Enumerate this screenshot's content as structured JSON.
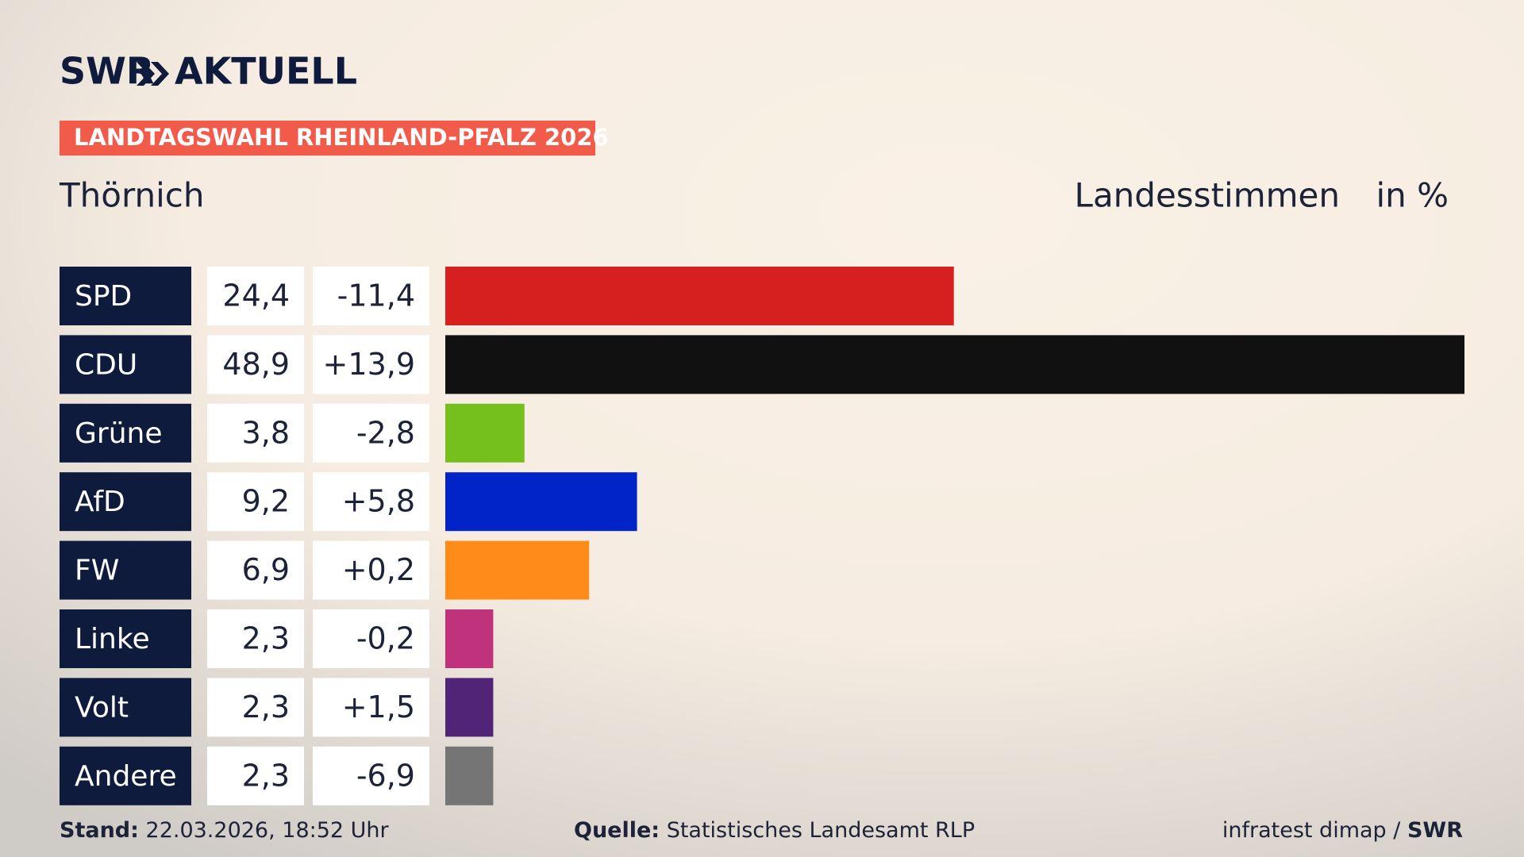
{
  "header": {
    "brand": "SWR",
    "product": "AKTUELL",
    "kicker": "LANDTAGSWAHL RHEINLAND-PFALZ 2026"
  },
  "chart_data": {
    "type": "bar",
    "title": "Thörnich",
    "subtitle": "Landesstimmen",
    "unit_label": "in %",
    "categories": [
      "SPD",
      "CDU",
      "Grüne",
      "AfD",
      "FW",
      "Linke",
      "Volt",
      "Andere"
    ],
    "values": [
      24.4,
      48.9,
      3.8,
      9.2,
      6.9,
      2.3,
      2.3,
      2.3
    ],
    "value_labels": [
      "24,4",
      "48,9",
      "3,8",
      "9,2",
      "6,9",
      "2,3",
      "2,3",
      "2,3"
    ],
    "changes": [
      -11.4,
      13.9,
      -2.8,
      5.8,
      0.2,
      -0.2,
      1.5,
      -6.9
    ],
    "change_labels": [
      "-11,4",
      "+13,9",
      "-2,8",
      "+5,8",
      "+0,2",
      "-0,2",
      "+1,5",
      "-6,9"
    ],
    "colors": [
      "#d61f1f",
      "#111111",
      "#76c01e",
      "#0024c8",
      "#ff8c19",
      "#c0337c",
      "#512478",
      "#757575"
    ]
  },
  "footer": {
    "stand_label": "Stand:",
    "stand": "22.03.2026, 18:52 Uhr",
    "source_label": "Quelle:",
    "source": "Statistisches Landesamt RLP",
    "credit": "infratest dimap /",
    "credit_brand": "SWR"
  }
}
